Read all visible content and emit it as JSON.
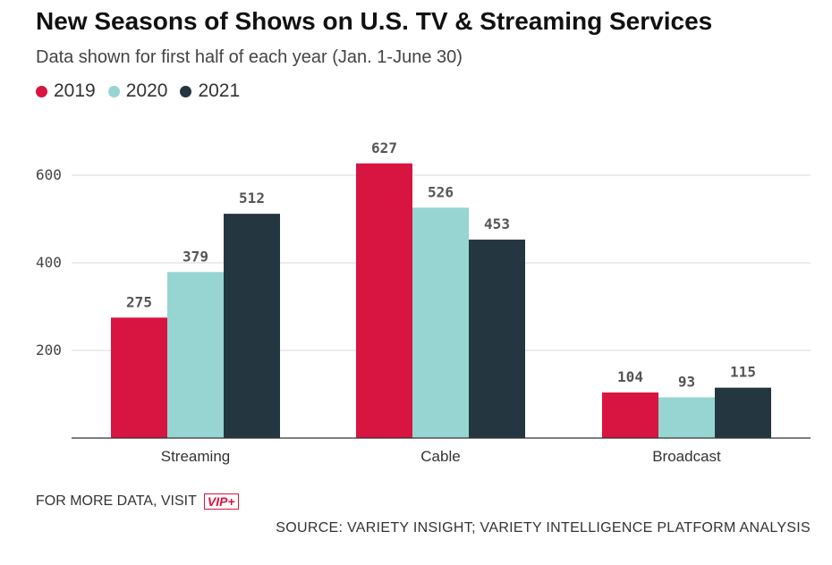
{
  "header": {
    "title": "New Seasons of Shows on U.S. TV & Streaming Services",
    "subtitle": "Data shown for first half of each year (Jan. 1-June 30)"
  },
  "footer": {
    "more_data_text": "FOR MORE DATA, VISIT",
    "vip_badge": "VIP+",
    "source": "SOURCE: VARIETY INSIGHT; VARIETY INTELLIGENCE PLATFORM ANALYSIS"
  },
  "chart_data": {
    "type": "bar",
    "title": "New Seasons of Shows on U.S. TV & Streaming Services",
    "subtitle": "Data shown for first half of each year (Jan. 1-June 30)",
    "categories": [
      "Streaming",
      "Cable",
      "Broadcast"
    ],
    "series": [
      {
        "name": "2019",
        "color": "#d81440",
        "values": [
          275,
          627,
          104
        ]
      },
      {
        "name": "2020",
        "color": "#97d5d2",
        "values": [
          379,
          526,
          93
        ]
      },
      {
        "name": "2021",
        "color": "#243640",
        "values": [
          512,
          453,
          115
        ]
      }
    ],
    "yticks": [
      200,
      400,
      600
    ],
    "ylim": [
      0,
      700
    ],
    "grid": true,
    "legend": "top-left",
    "xlabel": "",
    "ylabel": ""
  }
}
